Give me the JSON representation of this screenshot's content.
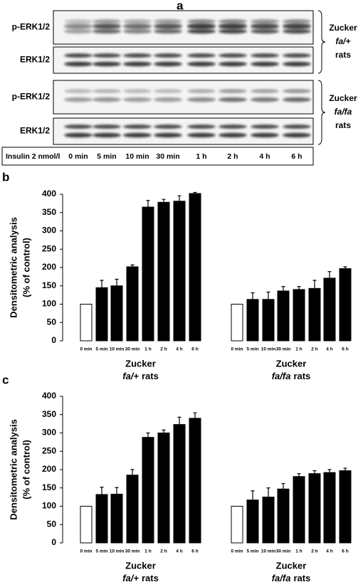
{
  "panel_a": {
    "label": "a",
    "blots": [
      {
        "rows": [
          "p-ERK1/2",
          "ERK1/2"
        ],
        "group": {
          "name": "Zucker",
          "strain": "fa/+",
          "suffix": "rats"
        }
      },
      {
        "rows": [
          "p-ERK1/2",
          "ERK1/2"
        ],
        "group": {
          "name": "Zucker",
          "strain": "fa/fa",
          "suffix": "rats"
        }
      }
    ],
    "treatment_label": "Insulin 2 nmol/l",
    "lanes": [
      "0 min",
      "5 min",
      "10 min",
      "30 min",
      "1 h",
      "2 h",
      "4 h",
      "6 h"
    ]
  },
  "chart_data": [
    {
      "type": "bar",
      "panel_label": "b",
      "y_label": [
        "Densitometric analysis",
        "(% of control)"
      ],
      "ylim": [
        0,
        400
      ],
      "yticks": [
        0,
        50,
        100,
        150,
        200,
        250,
        300,
        350,
        400
      ],
      "bar_colors": [
        "#ffffff",
        "#000000",
        "#000000",
        "#000000",
        "#000000",
        "#000000",
        "#000000",
        "#000000"
      ],
      "groups": [
        {
          "name": "Zucker",
          "strain": "fa/+",
          "suffix": "rats",
          "categories": [
            "0 min",
            "5 min",
            "10 min",
            "30 min",
            "1 h",
            "2 h",
            "4 h",
            "6 h"
          ],
          "values": [
            100,
            145,
            150,
            202,
            365,
            378,
            381,
            402
          ],
          "errors": [
            0,
            20,
            18,
            5,
            18,
            8,
            15,
            3
          ]
        },
        {
          "name": "Zucker",
          "strain": "fa/fa",
          "suffix": "rats",
          "categories": [
            "0 min",
            "5 min",
            "10 min",
            "30 min",
            "1 h",
            "2 h",
            "4 h",
            "6 h"
          ],
          "values": [
            100,
            113,
            113,
            136,
            140,
            143,
            171,
            197
          ],
          "errors": [
            0,
            18,
            20,
            12,
            8,
            22,
            18,
            5
          ]
        }
      ]
    },
    {
      "type": "bar",
      "panel_label": "c",
      "y_label": [
        "Densitometric analysis",
        "(% of control)"
      ],
      "ylim": [
        0,
        400
      ],
      "yticks": [
        0,
        50,
        100,
        150,
        200,
        250,
        300,
        350,
        400
      ],
      "bar_colors": [
        "#ffffff",
        "#000000",
        "#000000",
        "#000000",
        "#000000",
        "#000000",
        "#000000",
        "#000000"
      ],
      "groups": [
        {
          "name": "Zucker",
          "strain": "fa/+",
          "suffix": "rats",
          "categories": [
            "0 min",
            "5 min",
            "10 min",
            "30 min",
            "1 h",
            "2 h",
            "4 h",
            "6 h"
          ],
          "values": [
            100,
            132,
            133,
            185,
            288,
            300,
            323,
            340
          ],
          "errors": [
            0,
            20,
            18,
            15,
            12,
            8,
            20,
            15
          ]
        },
        {
          "name": "Zucker",
          "strain": "fa/fa",
          "suffix": "rats",
          "categories": [
            "0 min",
            "5 min",
            "10 min",
            "30 min",
            "1 h",
            "2 h",
            "4 h",
            "6 h"
          ],
          "values": [
            100,
            117,
            125,
            147,
            181,
            189,
            192,
            197
          ],
          "errors": [
            0,
            25,
            25,
            15,
            8,
            8,
            8,
            7
          ]
        }
      ]
    }
  ]
}
